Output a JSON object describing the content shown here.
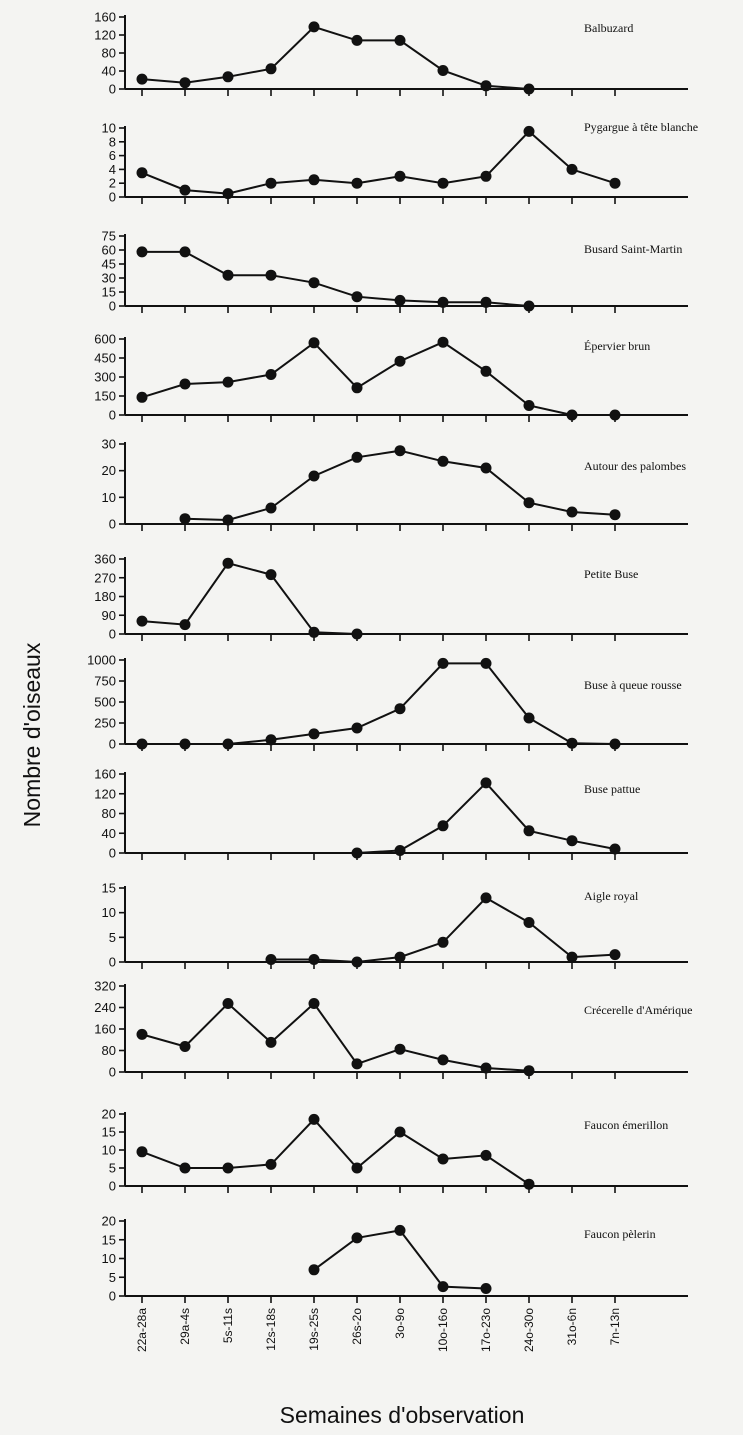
{
  "chart_data": {
    "type": "line",
    "xlabel": "Semaines d'observation",
    "ylabel": "Nombre d'oiseaux",
    "categories": [
      "22a-28a",
      "29a-4s",
      "5s-11s",
      "12s-18s",
      "19s-25s",
      "26s-2o",
      "3o-9o",
      "10o-16o",
      "17o-23o",
      "24o-30o",
      "31o-6n",
      "7n-13n"
    ],
    "panels": [
      {
        "name": "Balbuzard",
        "ylim": [
          0,
          160
        ],
        "yticks": [
          0,
          40,
          80,
          120,
          160
        ],
        "values": [
          22,
          14,
          27,
          45,
          138,
          108,
          108,
          41,
          7,
          0,
          null,
          null
        ]
      },
      {
        "name": "Pygargue à tête blanche",
        "ylim": [
          0,
          10
        ],
        "yticks": [
          0,
          2,
          4,
          6,
          8,
          10
        ],
        "values": [
          3.5,
          1,
          0.5,
          2,
          2.5,
          2,
          3,
          2,
          3,
          9.5,
          4,
          2
        ]
      },
      {
        "name": "Busard Saint-Martin",
        "ylim": [
          0,
          75
        ],
        "yticks": [
          0,
          15,
          30,
          45,
          60,
          75
        ],
        "values": [
          58,
          58,
          33,
          33,
          25,
          10,
          6,
          4,
          4,
          0,
          null,
          null
        ]
      },
      {
        "name": "Épervier brun",
        "ylim": [
          0,
          600
        ],
        "yticks": [
          0,
          150,
          300,
          450,
          600
        ],
        "values": [
          140,
          245,
          260,
          320,
          570,
          215,
          425,
          575,
          345,
          75,
          0,
          0
        ]
      },
      {
        "name": "Autour des palombes",
        "ylim": [
          0,
          30
        ],
        "yticks": [
          0,
          10,
          20,
          30
        ],
        "values": [
          null,
          2,
          1.5,
          6,
          18,
          25,
          27.5,
          23.5,
          21,
          8,
          4.5,
          3.5
        ]
      },
      {
        "name": "Petite Buse",
        "ylim": [
          0,
          360
        ],
        "yticks": [
          0,
          90,
          180,
          270,
          360
        ],
        "values": [
          62,
          45,
          340,
          285,
          8,
          0,
          null,
          null,
          null,
          null,
          null,
          null
        ]
      },
      {
        "name": "Buse à queue rousse",
        "ylim": [
          0,
          1000
        ],
        "yticks": [
          0,
          250,
          500,
          750,
          1000
        ],
        "values": [
          0,
          0,
          0,
          50,
          120,
          190,
          420,
          960,
          960,
          310,
          10,
          0
        ]
      },
      {
        "name": "Buse pattue",
        "ylim": [
          0,
          160
        ],
        "yticks": [
          0,
          40,
          80,
          120,
          160
        ],
        "values": [
          null,
          null,
          null,
          null,
          null,
          0,
          5,
          55,
          142,
          45,
          25,
          8
        ]
      },
      {
        "name": "Aigle royal",
        "ylim": [
          0,
          15
        ],
        "yticks": [
          0,
          5,
          10,
          15
        ],
        "values": [
          null,
          null,
          null,
          0.5,
          0.5,
          0,
          1,
          4,
          13,
          8,
          1,
          1.5
        ]
      },
      {
        "name": "Crécerelle d'Amérique",
        "ylim": [
          0,
          320
        ],
        "yticks": [
          0,
          80,
          160,
          240,
          320
        ],
        "values": [
          140,
          95,
          255,
          110,
          255,
          30,
          85,
          45,
          15,
          5,
          null,
          null
        ]
      },
      {
        "name": "Faucon émerillon",
        "ylim": [
          0,
          20
        ],
        "yticks": [
          0,
          5,
          10,
          15,
          20
        ],
        "values": [
          9.5,
          5,
          5,
          6,
          18.5,
          5,
          15,
          7.5,
          8.5,
          0.5,
          null,
          null
        ]
      },
      {
        "name": "Faucon pèlerin",
        "ylim": [
          0,
          20
        ],
        "yticks": [
          0,
          5,
          10,
          15,
          20
        ],
        "values": [
          null,
          null,
          null,
          null,
          7,
          15.5,
          17.5,
          2.5,
          2,
          null,
          null,
          null
        ]
      }
    ]
  }
}
